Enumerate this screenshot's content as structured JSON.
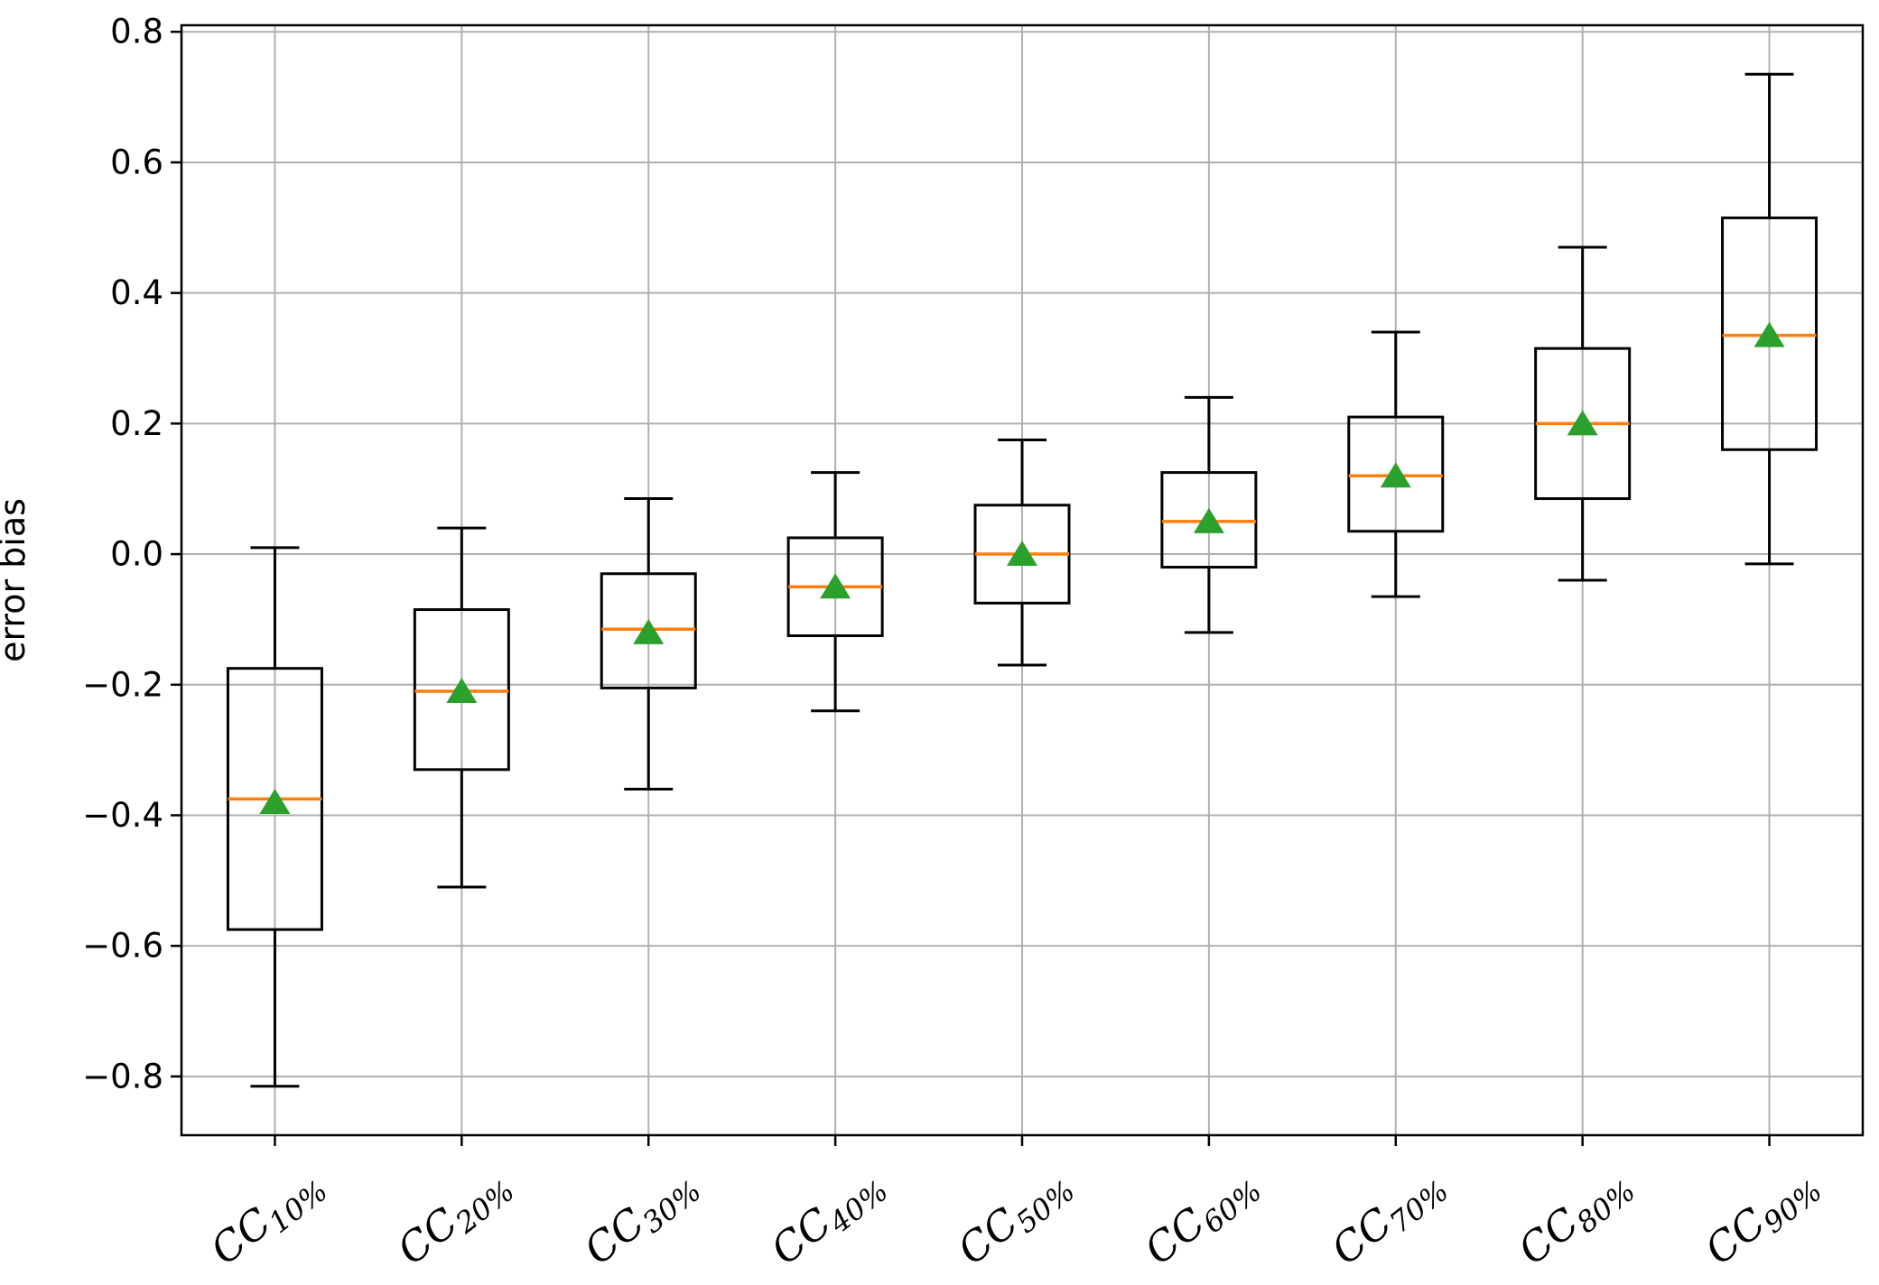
{
  "figure": {
    "background": "#ffffff"
  },
  "chart_data": {
    "type": "boxplot",
    "title": "",
    "xlabel": "",
    "ylabel": "error bias",
    "ylim": [
      -0.89,
      0.81
    ],
    "yticks": [
      0.8,
      0.6,
      0.4,
      0.2,
      0.0,
      -0.2,
      -0.4,
      -0.6,
      -0.8
    ],
    "grid": true,
    "legend": "none",
    "categories": [
      {
        "base": "CC",
        "sub": "10%"
      },
      {
        "base": "CC",
        "sub": "20%"
      },
      {
        "base": "CC",
        "sub": "30%"
      },
      {
        "base": "CC",
        "sub": "40%"
      },
      {
        "base": "CC",
        "sub": "50%"
      },
      {
        "base": "CC",
        "sub": "60%"
      },
      {
        "base": "CC",
        "sub": "70%"
      },
      {
        "base": "CC",
        "sub": "80%"
      },
      {
        "base": "CC",
        "sub": "90%"
      }
    ],
    "boxes": [
      {
        "whisker_low": -0.815,
        "q1": -0.575,
        "median": -0.375,
        "mean": -0.38,
        "q3": -0.175,
        "whisker_high": 0.01
      },
      {
        "whisker_low": -0.51,
        "q1": -0.33,
        "median": -0.21,
        "mean": -0.21,
        "q3": -0.085,
        "whisker_high": 0.04
      },
      {
        "whisker_low": -0.36,
        "q1": -0.205,
        "median": -0.115,
        "mean": -0.12,
        "q3": -0.03,
        "whisker_high": 0.085
      },
      {
        "whisker_low": -0.24,
        "q1": -0.125,
        "median": -0.05,
        "mean": -0.05,
        "q3": 0.025,
        "whisker_high": 0.125
      },
      {
        "whisker_low": -0.17,
        "q1": -0.075,
        "median": 0.0,
        "mean": 0.0,
        "q3": 0.075,
        "whisker_high": 0.175
      },
      {
        "whisker_low": -0.12,
        "q1": -0.02,
        "median": 0.05,
        "mean": 0.05,
        "q3": 0.125,
        "whisker_high": 0.24
      },
      {
        "whisker_low": -0.065,
        "q1": 0.035,
        "median": 0.12,
        "mean": 0.12,
        "q3": 0.21,
        "whisker_high": 0.34
      },
      {
        "whisker_low": -0.04,
        "q1": 0.085,
        "median": 0.2,
        "mean": 0.2,
        "q3": 0.315,
        "whisker_high": 0.47
      },
      {
        "whisker_low": -0.015,
        "q1": 0.16,
        "median": 0.335,
        "mean": 0.335,
        "q3": 0.515,
        "whisker_high": 0.735
      }
    ],
    "colors": {
      "box_edge": "#000000",
      "whisker": "#000000",
      "median": "#ff7f0e",
      "mean_marker": "#2ca02c",
      "grid": "#b0b0b0",
      "spine": "#000000",
      "tick_label": "#000000"
    }
  }
}
